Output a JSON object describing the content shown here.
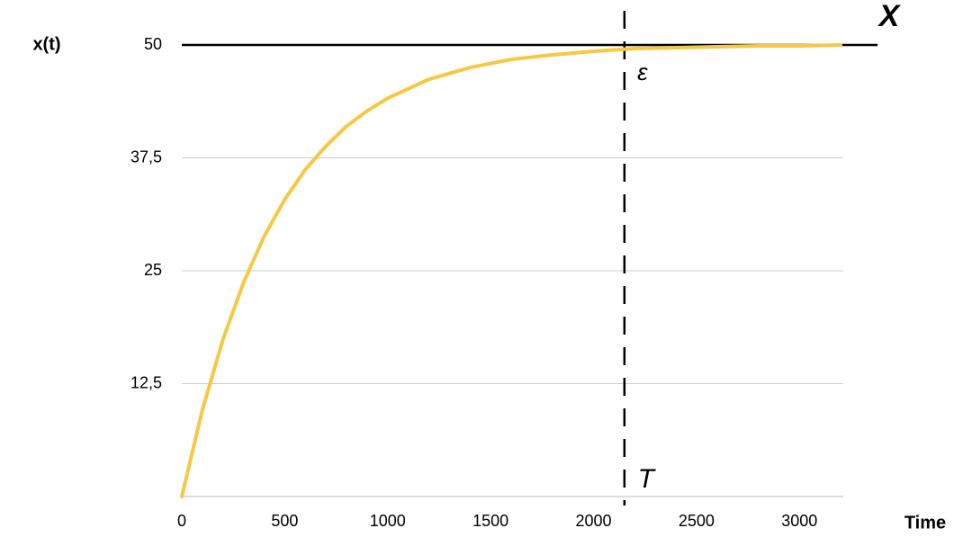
{
  "chart_data": {
    "type": "line",
    "y_label": "x(t)",
    "x_label": "Time",
    "x": [
      0,
      100,
      200,
      300,
      400,
      500,
      600,
      700,
      800,
      900,
      1000,
      1200,
      1400,
      1600,
      1800,
      2000,
      2200,
      2400,
      2600,
      2800,
      3000,
      3200
    ],
    "values": [
      0,
      9.6,
      17.4,
      23.7,
      28.8,
      32.9,
      36.2,
      38.8,
      41.0,
      42.7,
      44.1,
      46.2,
      47.5,
      48.4,
      48.9,
      49.3,
      49.6,
      49.7,
      49.8,
      49.9,
      49.9,
      50.0
    ],
    "color": "#f7c842",
    "xlim": [
      0,
      3200
    ],
    "ylim": [
      0,
      50
    ],
    "xticks": [
      0,
      500,
      1000,
      1500,
      2000,
      2500,
      3000
    ],
    "yticks": [
      {
        "value": 12.5,
        "label": "12,5"
      },
      25,
      {
        "value": 37.5,
        "label": "37,5"
      },
      50
    ],
    "grid": true,
    "hline": {
      "y": 50,
      "label": "X"
    },
    "vline": {
      "x": 2150,
      "label": "T"
    },
    "epsilon_label": "ε"
  }
}
